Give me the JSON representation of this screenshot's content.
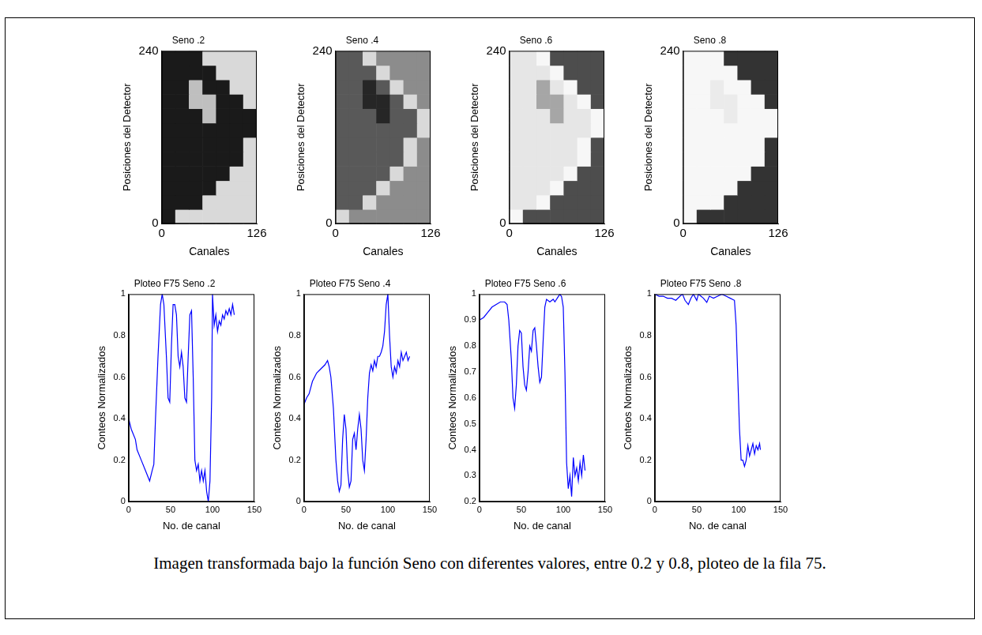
{
  "chart_data": [
    {
      "type": "heatmap",
      "title": "Seno .2",
      "x_label": "Canales",
      "y_label": "Posiciones del Detector",
      "xlim": [
        0,
        126
      ],
      "ylim": [
        0,
        240
      ],
      "xticks": [
        0,
        126
      ],
      "yticks": [
        0,
        240
      ],
      "grid": false,
      "cells": [
        [
          0.1,
          0.85,
          0.85,
          0.85,
          0.85,
          0.85,
          0.85
        ],
        [
          0.1,
          0.1,
          0.1,
          0.85,
          0.85,
          0.85,
          0.85
        ],
        [
          0.1,
          0.1,
          0.1,
          0.1,
          0.85,
          0.85,
          0.85
        ],
        [
          0.1,
          0.1,
          0.1,
          0.1,
          0.1,
          0.85,
          0.85
        ],
        [
          0.1,
          0.1,
          0.1,
          0.1,
          0.1,
          0.1,
          0.85
        ],
        [
          0.1,
          0.1,
          0.1,
          0.1,
          0.1,
          0.1,
          0.85
        ],
        [
          0.1,
          0.1,
          0.1,
          0.1,
          0.1,
          0.1,
          0.1
        ],
        [
          0.1,
          0.1,
          0.1,
          0.75,
          0.1,
          0.1,
          0.1
        ],
        [
          0.1,
          0.1,
          0.75,
          0.75,
          0.1,
          0.1,
          0.85
        ],
        [
          0.1,
          0.1,
          0.75,
          0.1,
          0.1,
          0.85,
          0.85
        ],
        [
          0.1,
          0.1,
          0.1,
          0.1,
          0.85,
          0.85,
          0.85
        ],
        [
          0.1,
          0.1,
          0.1,
          0.85,
          0.85,
          0.85,
          0.85
        ]
      ]
    },
    {
      "type": "heatmap",
      "title": "Seno .4",
      "x_label": "Canales",
      "y_label": "Posiciones del Detector",
      "xlim": [
        0,
        126
      ],
      "ylim": [
        0,
        240
      ],
      "xticks": [
        0,
        126
      ],
      "yticks": [
        0,
        240
      ],
      "grid": false,
      "cells": [
        [
          0.85,
          0.55,
          0.55,
          0.55,
          0.55,
          0.55,
          0.55
        ],
        [
          0.35,
          0.35,
          0.85,
          0.55,
          0.55,
          0.55,
          0.55
        ],
        [
          0.35,
          0.35,
          0.35,
          0.85,
          0.55,
          0.55,
          0.55
        ],
        [
          0.35,
          0.35,
          0.35,
          0.35,
          0.85,
          0.55,
          0.55
        ],
        [
          0.35,
          0.35,
          0.35,
          0.35,
          0.35,
          0.85,
          0.55
        ],
        [
          0.35,
          0.35,
          0.35,
          0.35,
          0.35,
          0.85,
          0.55
        ],
        [
          0.35,
          0.35,
          0.35,
          0.35,
          0.35,
          0.35,
          0.85
        ],
        [
          0.35,
          0.35,
          0.35,
          0.15,
          0.35,
          0.35,
          0.85
        ],
        [
          0.35,
          0.35,
          0.15,
          0.15,
          0.35,
          0.85,
          0.55
        ],
        [
          0.35,
          0.35,
          0.15,
          0.35,
          0.85,
          0.55,
          0.55
        ],
        [
          0.35,
          0.35,
          0.35,
          0.85,
          0.55,
          0.55,
          0.55
        ],
        [
          0.35,
          0.35,
          0.85,
          0.55,
          0.55,
          0.55,
          0.55
        ]
      ]
    },
    {
      "type": "heatmap",
      "title": "Seno .6",
      "x_label": "Canales",
      "y_label": "Posiciones del Detector",
      "xlim": [
        0,
        126
      ],
      "ylim": [
        0,
        240
      ],
      "xticks": [
        0,
        126
      ],
      "yticks": [
        0,
        240
      ],
      "grid": false,
      "cells": [
        [
          0.97,
          0.3,
          0.3,
          0.3,
          0.3,
          0.3,
          0.3
        ],
        [
          0.9,
          0.9,
          0.97,
          0.3,
          0.3,
          0.3,
          0.3
        ],
        [
          0.9,
          0.9,
          0.9,
          0.97,
          0.3,
          0.3,
          0.3
        ],
        [
          0.9,
          0.9,
          0.9,
          0.9,
          0.97,
          0.3,
          0.3
        ],
        [
          0.9,
          0.9,
          0.9,
          0.9,
          0.9,
          0.97,
          0.3
        ],
        [
          0.9,
          0.9,
          0.9,
          0.9,
          0.9,
          0.97,
          0.3
        ],
        [
          0.9,
          0.9,
          0.9,
          0.9,
          0.9,
          0.9,
          0.97
        ],
        [
          0.9,
          0.9,
          0.9,
          0.65,
          0.9,
          0.9,
          0.97
        ],
        [
          0.9,
          0.9,
          0.65,
          0.65,
          0.9,
          0.97,
          0.3
        ],
        [
          0.9,
          0.9,
          0.65,
          0.9,
          0.97,
          0.3,
          0.3
        ],
        [
          0.9,
          0.9,
          0.9,
          0.97,
          0.3,
          0.3,
          0.3
        ],
        [
          0.9,
          0.9,
          0.97,
          0.3,
          0.3,
          0.3,
          0.3
        ]
      ]
    },
    {
      "type": "heatmap",
      "title": "Seno .8",
      "x_label": "Canales",
      "y_label": "Posiciones del Detector",
      "xlim": [
        0,
        126
      ],
      "ylim": [
        0,
        240
      ],
      "xticks": [
        0,
        126
      ],
      "yticks": [
        0,
        240
      ],
      "grid": false,
      "cells": [
        [
          0.97,
          0.2,
          0.2,
          0.2,
          0.2,
          0.2,
          0.2
        ],
        [
          0.97,
          0.97,
          0.97,
          0.2,
          0.2,
          0.2,
          0.2
        ],
        [
          0.97,
          0.97,
          0.97,
          0.97,
          0.2,
          0.2,
          0.2
        ],
        [
          0.97,
          0.97,
          0.97,
          0.97,
          0.97,
          0.2,
          0.2
        ],
        [
          0.97,
          0.97,
          0.97,
          0.97,
          0.97,
          0.97,
          0.2
        ],
        [
          0.97,
          0.97,
          0.97,
          0.97,
          0.97,
          0.97,
          0.2
        ],
        [
          0.97,
          0.97,
          0.97,
          0.97,
          0.97,
          0.97,
          0.97
        ],
        [
          0.97,
          0.97,
          0.97,
          0.92,
          0.97,
          0.97,
          0.97
        ],
        [
          0.97,
          0.97,
          0.92,
          0.92,
          0.97,
          0.97,
          0.2
        ],
        [
          0.97,
          0.97,
          0.92,
          0.97,
          0.97,
          0.2,
          0.2
        ],
        [
          0.97,
          0.97,
          0.97,
          0.97,
          0.2,
          0.2,
          0.2
        ],
        [
          0.97,
          0.97,
          0.97,
          0.2,
          0.2,
          0.2,
          0.2
        ]
      ]
    },
    {
      "type": "line",
      "title": "Ploteo F75 Seno .2",
      "x_label": "No. de canal",
      "y_label": "Conteos Normalizados",
      "xlim": [
        0,
        150
      ],
      "ylim": [
        0,
        1
      ],
      "xticks": [
        0,
        50,
        100,
        150
      ],
      "yticks": [
        0,
        0.2,
        0.4,
        0.6,
        0.8,
        1
      ],
      "grid": false,
      "color": "#0000ff",
      "x": [
        0,
        3,
        5,
        8,
        10,
        15,
        20,
        25,
        28,
        30,
        32,
        35,
        38,
        40,
        42,
        45,
        47,
        49,
        51,
        53,
        55,
        57,
        59,
        61,
        63,
        65,
        67,
        69,
        71,
        73,
        75,
        77,
        79,
        81,
        83,
        85,
        87,
        89,
        91,
        93,
        95,
        97,
        99,
        100,
        102,
        104,
        106,
        108,
        110,
        112,
        114,
        116,
        118,
        120,
        122,
        124,
        126
      ],
      "values": [
        0.4,
        0.35,
        0.33,
        0.3,
        0.25,
        0.2,
        0.15,
        0.1,
        0.15,
        0.18,
        0.4,
        0.7,
        0.95,
        1.0,
        0.95,
        0.7,
        0.5,
        0.48,
        0.75,
        0.95,
        0.95,
        0.9,
        0.7,
        0.65,
        0.72,
        0.65,
        0.5,
        0.48,
        0.7,
        0.9,
        0.92,
        0.6,
        0.2,
        0.15,
        0.18,
        0.1,
        0.15,
        0.1,
        0.15,
        0.05,
        0.0,
        0.1,
        0.5,
        1.0,
        0.85,
        0.9,
        0.82,
        0.87,
        0.85,
        0.9,
        0.88,
        0.92,
        0.9,
        0.93,
        0.9,
        0.95,
        0.9
      ]
    },
    {
      "type": "line",
      "title": "Ploteo F75 Seno .4",
      "x_label": "No. de canal",
      "y_label": "Conteos Normalizados",
      "xlim": [
        0,
        150
      ],
      "ylim": [
        0,
        1
      ],
      "xticks": [
        0,
        50,
        100,
        150
      ],
      "yticks": [
        0,
        0.2,
        0.4,
        0.6,
        0.8,
        1
      ],
      "grid": false,
      "color": "#0000ff",
      "x": [
        0,
        3,
        6,
        10,
        15,
        20,
        25,
        28,
        30,
        32,
        35,
        38,
        40,
        42,
        44,
        46,
        48,
        50,
        52,
        54,
        56,
        58,
        60,
        62,
        64,
        66,
        68,
        70,
        72,
        74,
        76,
        78,
        80,
        82,
        84,
        86,
        88,
        90,
        92,
        94,
        96,
        98,
        100,
        102,
        104,
        106,
        108,
        110,
        112,
        114,
        116,
        118,
        120,
        122,
        124,
        126
      ],
      "values": [
        0.47,
        0.5,
        0.52,
        0.58,
        0.62,
        0.64,
        0.66,
        0.68,
        0.65,
        0.6,
        0.45,
        0.2,
        0.1,
        0.05,
        0.08,
        0.3,
        0.42,
        0.35,
        0.15,
        0.07,
        0.1,
        0.3,
        0.33,
        0.25,
        0.35,
        0.42,
        0.35,
        0.2,
        0.15,
        0.3,
        0.5,
        0.62,
        0.66,
        0.63,
        0.68,
        0.65,
        0.7,
        0.7,
        0.72,
        0.75,
        0.82,
        0.95,
        1.0,
        0.8,
        0.65,
        0.6,
        0.65,
        0.62,
        0.68,
        0.65,
        0.72,
        0.68,
        0.7,
        0.72,
        0.68,
        0.7
      ]
    },
    {
      "type": "line",
      "title": "Ploteo F75 Seno .6",
      "x_label": "No. de canal",
      "y_label": "Conteos Normalizados",
      "xlim": [
        0,
        150
      ],
      "ylim": [
        0.2,
        1
      ],
      "xticks": [
        0,
        50,
        100,
        150
      ],
      "yticks": [
        0.2,
        0.3,
        0.4,
        0.5,
        0.6,
        0.7,
        0.8,
        0.9,
        1
      ],
      "grid": false,
      "color": "#0000ff",
      "x": [
        0,
        5,
        10,
        15,
        20,
        25,
        30,
        33,
        35,
        38,
        40,
        42,
        44,
        46,
        48,
        50,
        52,
        54,
        56,
        58,
        60,
        62,
        64,
        66,
        68,
        70,
        72,
        74,
        76,
        78,
        80,
        84,
        88,
        90,
        94,
        96,
        98,
        100,
        102,
        104,
        106,
        108,
        110,
        112,
        114,
        116,
        118,
        120,
        122,
        124,
        126
      ],
      "values": [
        0.9,
        0.91,
        0.93,
        0.95,
        0.96,
        0.97,
        0.97,
        0.96,
        0.9,
        0.75,
        0.6,
        0.56,
        0.65,
        0.8,
        0.86,
        0.85,
        0.72,
        0.65,
        0.63,
        0.7,
        0.8,
        0.78,
        0.86,
        0.87,
        0.8,
        0.72,
        0.66,
        0.68,
        0.82,
        0.95,
        0.98,
        0.97,
        0.98,
        0.97,
        0.99,
        1.0,
        0.99,
        0.95,
        0.7,
        0.35,
        0.25,
        0.3,
        0.22,
        0.37,
        0.3,
        0.33,
        0.28,
        0.35,
        0.3,
        0.38,
        0.32
      ]
    },
    {
      "type": "line",
      "title": "Ploteo F75 Seno .8",
      "x_label": "No. de canal",
      "y_label": "Conteos Normalizados",
      "xlim": [
        0,
        150
      ],
      "ylim": [
        0,
        1
      ],
      "xticks": [
        0,
        50,
        100,
        150
      ],
      "yticks": [
        0,
        0.2,
        0.4,
        0.6,
        0.8,
        1
      ],
      "grid": false,
      "color": "#0000ff",
      "x": [
        0,
        5,
        10,
        15,
        20,
        25,
        30,
        33,
        36,
        40,
        43,
        46,
        50,
        52,
        55,
        58,
        62,
        65,
        70,
        75,
        80,
        85,
        90,
        95,
        97,
        99,
        101,
        103,
        105,
        107,
        109,
        111,
        113,
        115,
        117,
        119,
        121,
        123,
        125,
        126
      ],
      "values": [
        1.0,
        0.99,
        0.99,
        0.98,
        0.98,
        0.97,
        0.99,
        1.0,
        0.97,
        0.95,
        0.98,
        1.0,
        0.97,
        1.0,
        0.99,
        0.98,
        0.96,
        0.99,
        0.98,
        0.99,
        1.0,
        0.99,
        0.98,
        0.97,
        0.85,
        0.6,
        0.35,
        0.2,
        0.2,
        0.17,
        0.2,
        0.27,
        0.22,
        0.25,
        0.28,
        0.23,
        0.27,
        0.25,
        0.28,
        0.25
      ]
    }
  ],
  "caption": "Imagen transformada bajo la función Seno con diferentes valores, entre 0.2 y 0.8, ploteo de la fila 75."
}
